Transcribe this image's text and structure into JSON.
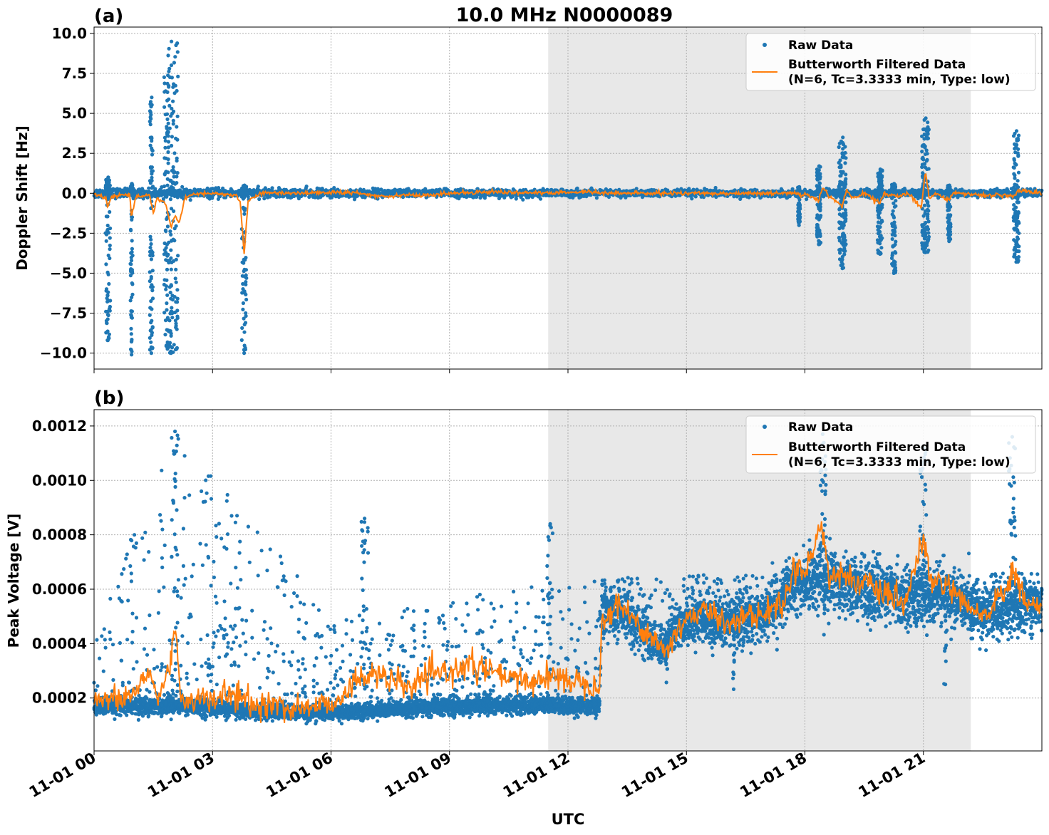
{
  "figure": {
    "title": "10.0 MHz N0000089",
    "xlabel": "UTC",
    "x_ticks": [
      "11-01 00",
      "11-01 03",
      "11-01 06",
      "11-01 09",
      "11-01 12",
      "11-01 15",
      "11-01 18",
      "11-01 21"
    ],
    "x_range_hours": [
      0,
      24
    ],
    "shaded_interval_hours": [
      11.5,
      22.2
    ],
    "colors": {
      "raw": "#1f77b4",
      "filtered": "#ff7f0e",
      "shade": "#e8e8e8"
    }
  },
  "chart_data": [
    {
      "type": "scatter",
      "panel_label": "(a)",
      "ylabel": "Doppler Shift [Hz]",
      "ylim": [
        -11.0,
        10.4
      ],
      "y_ticks": [
        {
          "value": 10.0,
          "label": "10.0"
        },
        {
          "value": 7.5,
          "label": "7.5"
        },
        {
          "value": 5.0,
          "label": "5.0"
        },
        {
          "value": 2.5,
          "label": "2.5"
        },
        {
          "value": 0.0,
          "label": "0.0"
        },
        {
          "value": -2.5,
          "label": "−2.5"
        },
        {
          "value": -5.0,
          "label": "−5.0"
        },
        {
          "value": -7.5,
          "label": "−7.5"
        },
        {
          "value": -10.0,
          "label": "−10.0"
        }
      ],
      "grid": true,
      "legend_position": "top-right",
      "legend": [
        "Raw Data",
        "Butterworth Filtered Data",
        "(N=6, Tc=3.3333 min, Type: low)"
      ],
      "series": [
        {
          "name": "Raw Data",
          "baseline": 0.0,
          "noise_by_time": [
            [
              0,
              0.25
            ],
            [
              11.5,
              0.2
            ],
            [
              17,
              0.18
            ],
            [
              24,
              0.2
            ]
          ],
          "bursts": [
            {
              "t": 0.35,
              "width": 0.12,
              "min": -9.2,
              "max": 1.0
            },
            {
              "t": 0.95,
              "width": 0.06,
              "min": -10.1,
              "max": 0.6
            },
            {
              "t": 1.45,
              "width": 0.08,
              "min": -10.0,
              "max": 6.0
            },
            {
              "t": 1.95,
              "width": 0.35,
              "min": -10.0,
              "max": 9.5
            },
            {
              "t": 3.8,
              "width": 0.12,
              "min": -10.0,
              "max": 0.5
            },
            {
              "t": 17.85,
              "width": 0.06,
              "min": -2.0,
              "max": 0.4
            },
            {
              "t": 18.35,
              "width": 0.1,
              "min": -3.2,
              "max": 1.7
            },
            {
              "t": 18.95,
              "width": 0.18,
              "min": -4.7,
              "max": 3.5
            },
            {
              "t": 19.9,
              "width": 0.12,
              "min": -3.8,
              "max": 1.5
            },
            {
              "t": 20.25,
              "width": 0.1,
              "min": -5.0,
              "max": 0.6
            },
            {
              "t": 21.05,
              "width": 0.18,
              "min": -3.7,
              "max": 4.7
            },
            {
              "t": 21.65,
              "width": 0.08,
              "min": -3.0,
              "max": 0.5
            },
            {
              "t": 23.35,
              "width": 0.14,
              "min": -4.3,
              "max": 3.9
            }
          ]
        },
        {
          "name": "Butterworth Filtered Data",
          "points": [
            [
              0.0,
              -0.1
            ],
            [
              0.3,
              -0.3
            ],
            [
              0.35,
              -0.8
            ],
            [
              0.45,
              -0.2
            ],
            [
              0.9,
              -0.1
            ],
            [
              0.95,
              -1.6
            ],
            [
              1.05,
              -0.2
            ],
            [
              1.4,
              -0.1
            ],
            [
              1.5,
              -1.2
            ],
            [
              1.6,
              -0.3
            ],
            [
              1.8,
              -0.6
            ],
            [
              1.95,
              -2.1
            ],
            [
              2.05,
              -1.4
            ],
            [
              2.15,
              -1.9
            ],
            [
              2.3,
              -0.3
            ],
            [
              2.6,
              0.0
            ],
            [
              3.6,
              -0.1
            ],
            [
              3.7,
              -0.6
            ],
            [
              3.8,
              -3.8
            ],
            [
              3.9,
              -0.5
            ],
            [
              4.2,
              0.0
            ],
            [
              6.5,
              0.05
            ],
            [
              7.0,
              -0.1
            ],
            [
              7.3,
              -0.2
            ],
            [
              7.8,
              -0.1
            ],
            [
              8.4,
              -0.15
            ],
            [
              9.0,
              0.0
            ],
            [
              10.0,
              0.1
            ],
            [
              11.5,
              0.0
            ],
            [
              12.5,
              0.1
            ],
            [
              13.0,
              0.0
            ],
            [
              17.8,
              0.0
            ],
            [
              17.9,
              -0.2
            ],
            [
              18.0,
              0.0
            ],
            [
              18.35,
              -0.5
            ],
            [
              18.45,
              0.4
            ],
            [
              18.6,
              -0.2
            ],
            [
              18.95,
              -0.8
            ],
            [
              19.05,
              0.2
            ],
            [
              19.2,
              -0.3
            ],
            [
              19.5,
              0.0
            ],
            [
              19.9,
              -0.6
            ],
            [
              20.0,
              0.0
            ],
            [
              20.3,
              -0.2
            ],
            [
              20.6,
              0.0
            ],
            [
              20.95,
              -0.9
            ],
            [
              21.05,
              1.4
            ],
            [
              21.15,
              -0.3
            ],
            [
              21.3,
              0.0
            ],
            [
              21.65,
              -0.4
            ],
            [
              21.75,
              0.0
            ],
            [
              23.3,
              -0.2
            ],
            [
              23.4,
              0.2
            ],
            [
              24.0,
              0.0
            ]
          ]
        }
      ]
    },
    {
      "type": "scatter",
      "panel_label": "(b)",
      "ylabel": "Peak Voltage [V]",
      "ylim": [
        5.5e-06,
        0.00126
      ],
      "y_ticks": [
        {
          "value": 0.0012,
          "label": "0.0012"
        },
        {
          "value": 0.001,
          "label": "0.0010"
        },
        {
          "value": 0.0008,
          "label": "0.0008"
        },
        {
          "value": 0.0006,
          "label": "0.0006"
        },
        {
          "value": 0.0004,
          "label": "0.0004"
        },
        {
          "value": 0.0002,
          "label": "0.0002"
        }
      ],
      "grid": true,
      "legend_position": "top-right",
      "legend": [
        "Raw Data",
        "Butterworth Filtered Data",
        "(N=6, Tc=3.3333 min, Type: low)"
      ],
      "series": [
        {
          "name": "Raw Data",
          "base_curve": [
            [
              0.0,
              0.000165
            ],
            [
              2.0,
              0.000175
            ],
            [
              4.0,
              0.00015
            ],
            [
              6.0,
              0.000145
            ],
            [
              8.0,
              0.00016
            ],
            [
              10.0,
              0.000175
            ],
            [
              12.8,
              0.00017
            ],
            [
              12.85,
              0.00052
            ],
            [
              13.5,
              0.0005
            ],
            [
              14.3,
              0.00038
            ],
            [
              15.0,
              0.00049
            ],
            [
              16.0,
              0.00047
            ],
            [
              17.0,
              0.0005
            ],
            [
              17.8,
              0.00062
            ],
            [
              18.5,
              0.00065
            ],
            [
              19.5,
              0.0006
            ],
            [
              20.5,
              0.00057
            ],
            [
              21.5,
              0.00058
            ],
            [
              22.5,
              0.0005
            ],
            [
              24.0,
              0.00055
            ]
          ],
          "outliers_by_time": [
            [
              0,
              0.00045
            ],
            [
              2.0,
              0.0012
            ],
            [
              6.0,
              0.0005
            ],
            [
              12.8,
              0.00065
            ],
            [
              24,
              0.00066
            ]
          ],
          "spikes": [
            {
              "t": 2.05,
              "max": 0.00118
            },
            {
              "t": 6.85,
              "max": 0.00086
            },
            {
              "t": 11.55,
              "max": 0.00084
            },
            {
              "t": 18.45,
              "max": 0.00117
            },
            {
              "t": 21.0,
              "max": 0.00112
            },
            {
              "t": 23.25,
              "max": 0.00116
            }
          ],
          "dips": [
            {
              "t": 14.5,
              "min": 0.00024
            },
            {
              "t": 16.2,
              "min": 0.00023
            },
            {
              "t": 21.55,
              "min": 0.00015
            },
            {
              "t": 18.5,
              "min": 0.00043
            }
          ]
        },
        {
          "name": "Butterworth Filtered Data",
          "points": [
            [
              0.0,
              0.0002
            ],
            [
              0.5,
              0.00019
            ],
            [
              1.0,
              0.00021
            ],
            [
              1.4,
              0.0003
            ],
            [
              1.6,
              0.0002
            ],
            [
              1.9,
              0.0003
            ],
            [
              2.05,
              0.00047
            ],
            [
              2.2,
              0.0002
            ],
            [
              3.0,
              0.00019
            ],
            [
              3.5,
              0.00022
            ],
            [
              4.0,
              0.00017
            ],
            [
              4.5,
              0.00018
            ],
            [
              5.0,
              0.00016
            ],
            [
              5.5,
              0.00017
            ],
            [
              6.0,
              0.00018
            ],
            [
              6.5,
              0.00024
            ],
            [
              7.0,
              0.0003
            ],
            [
              7.5,
              0.00026
            ],
            [
              8.0,
              0.00024
            ],
            [
              8.5,
              0.00028
            ],
            [
              9.0,
              0.0003
            ],
            [
              9.5,
              0.00032
            ],
            [
              10.0,
              0.0003
            ],
            [
              10.5,
              0.00027
            ],
            [
              11.0,
              0.00026
            ],
            [
              11.5,
              0.00028
            ],
            [
              12.0,
              0.00027
            ],
            [
              12.8,
              0.00025
            ],
            [
              12.85,
              0.00046
            ],
            [
              13.2,
              0.00055
            ],
            [
              13.6,
              0.0005
            ],
            [
              14.0,
              0.00044
            ],
            [
              14.5,
              0.00037
            ],
            [
              15.0,
              0.0005
            ],
            [
              15.5,
              0.00052
            ],
            [
              16.0,
              0.00048
            ],
            [
              16.5,
              0.0005
            ],
            [
              17.0,
              0.00051
            ],
            [
              17.5,
              0.00056
            ],
            [
              17.8,
              0.00072
            ],
            [
              18.0,
              0.00064
            ],
            [
              18.4,
              0.00085
            ],
            [
              18.6,
              0.00066
            ],
            [
              19.0,
              0.00065
            ],
            [
              19.5,
              0.00062
            ],
            [
              20.0,
              0.00058
            ],
            [
              20.5,
              0.00054
            ],
            [
              21.0,
              0.00078
            ],
            [
              21.2,
              0.00062
            ],
            [
              21.6,
              0.00062
            ],
            [
              22.0,
              0.00054
            ],
            [
              22.5,
              0.0005
            ],
            [
              23.0,
              0.00058
            ],
            [
              23.3,
              0.00066
            ],
            [
              23.6,
              0.00055
            ],
            [
              24.0,
              0.00053
            ]
          ]
        }
      ]
    }
  ]
}
